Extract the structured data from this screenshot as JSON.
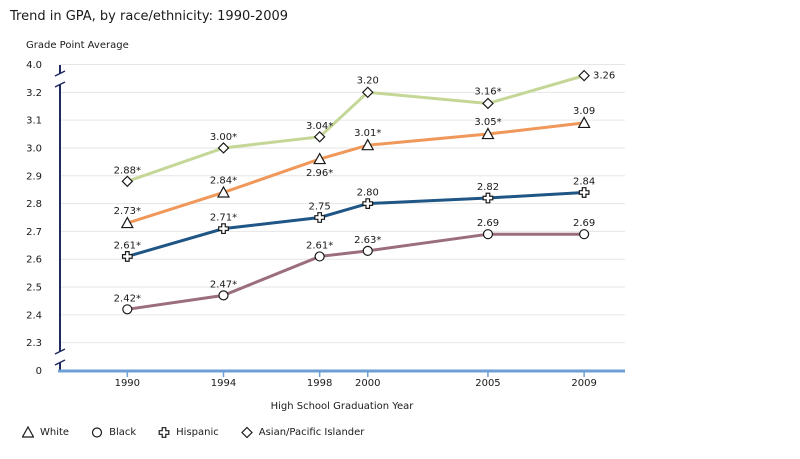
{
  "chart_data": {
    "type": "line",
    "title": "Trend in GPA, by race/ethnicity: 1990-2009",
    "ylabel": "Grade Point Average",
    "xlabel": "High School Graduation Year",
    "x": [
      1990,
      1994,
      1998,
      2000,
      2005,
      2009
    ],
    "y_ticks": [
      "0",
      "2.3",
      "2.4",
      "2.5",
      "2.6",
      "2.7",
      "2.8",
      "2.9",
      "3.0",
      "3.1",
      "3.2",
      "4.0"
    ],
    "ylim": [
      2.2,
      3.3
    ],
    "axis_break": true,
    "series": [
      {
        "name": "White",
        "marker": "triangle",
        "color": "#f0975a",
        "values": [
          2.73,
          2.84,
          2.96,
          3.01,
          3.05,
          3.09
        ],
        "labels": [
          "2.73*",
          "2.84*",
          "2.96*",
          "3.01*",
          "3.05*",
          "3.09"
        ]
      },
      {
        "name": "Black",
        "marker": "circle",
        "color": "#9b6e7c",
        "values": [
          2.42,
          2.47,
          2.61,
          2.63,
          2.69,
          2.69
        ],
        "labels": [
          "2.42*",
          "2.47*",
          "2.61*",
          "2.63*",
          "2.69",
          "2.69"
        ]
      },
      {
        "name": "Hispanic",
        "marker": "cross",
        "color": "#1f5686",
        "values": [
          2.61,
          2.71,
          2.75,
          2.8,
          2.82,
          2.84
        ],
        "labels": [
          "2.61*",
          "2.71*",
          "2.75",
          "2.80",
          "2.82",
          "2.84"
        ]
      },
      {
        "name": "Asian/Pacific Islander",
        "marker": "diamond",
        "color": "#c5d797",
        "values": [
          2.88,
          3.0,
          3.04,
          3.2,
          3.16,
          3.26
        ],
        "labels": [
          "2.88*",
          "3.00*",
          "3.04*",
          "3.20",
          "3.16*",
          "3.26"
        ]
      }
    ],
    "colors": {
      "axis": "#1f2a5e",
      "baseline": "#6e9fd4",
      "grid": "#e6e6e6"
    }
  }
}
